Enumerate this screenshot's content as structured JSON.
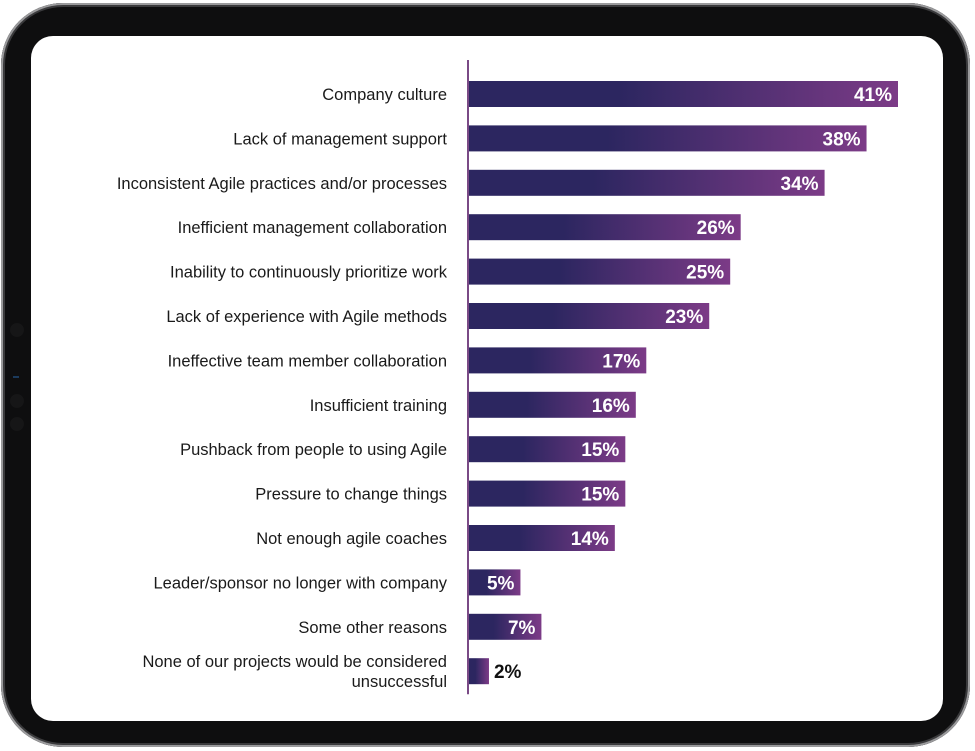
{
  "chart_data": {
    "type": "bar",
    "orientation": "horizontal",
    "title": "",
    "xlabel": "",
    "ylabel": "",
    "categories": [
      [
        "Company culture"
      ],
      [
        "Lack of management support"
      ],
      [
        "Inconsistent Agile practices and/or processes"
      ],
      [
        "Inefficient management collaboration"
      ],
      [
        "Inability to continuously prioritize work"
      ],
      [
        "Lack of experience with Agile methods"
      ],
      [
        "Ineffective team member collaboration"
      ],
      [
        "Insufficient training"
      ],
      [
        "Pushback from people to using Agile"
      ],
      [
        "Pressure to change things"
      ],
      [
        "Not enough agile coaches"
      ],
      [
        "Leader/sponsor no longer with company"
      ],
      [
        "Some other reasons"
      ],
      [
        "None of our projects would be considered",
        "unsuccessful"
      ]
    ],
    "values": [
      41,
      38,
      34,
      26,
      25,
      23,
      17,
      16,
      15,
      15,
      14,
      5,
      7,
      2
    ],
    "value_labels": [
      "41%",
      "38%",
      "34%",
      "26%",
      "25%",
      "23%",
      "17%",
      "16%",
      "15%",
      "15%",
      "14%",
      "5%",
      "7%",
      "2%"
    ],
    "xlim": [
      0,
      41
    ],
    "grid": false,
    "legend": "none",
    "colors": {
      "bar_start": "#2c2660",
      "bar_end": "#7c3b87",
      "axis": "#7a4a86"
    }
  }
}
